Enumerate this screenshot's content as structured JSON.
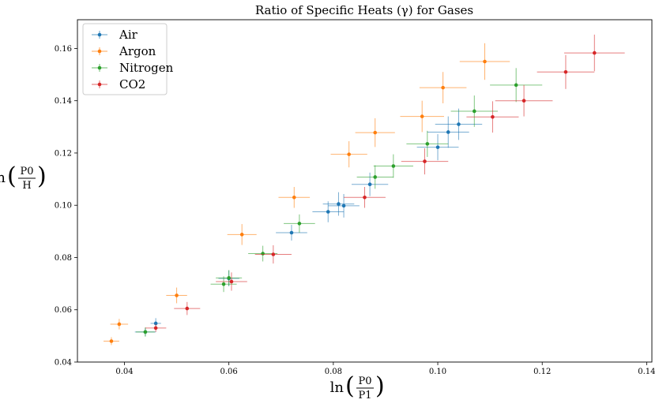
{
  "chart_data": {
    "type": "scatter",
    "title": "Ratio of Specific Heats (γ) for Gases",
    "xlabel": {
      "prefix": "ln",
      "num": "P0",
      "den": "P1"
    },
    "ylabel": {
      "prefix": "ln",
      "num": "P0",
      "den": "H"
    },
    "xlim": [
      0.031,
      0.141
    ],
    "ylim": [
      0.04,
      0.171
    ],
    "xticks": [
      0.04,
      0.06,
      0.08,
      0.1,
      0.12,
      0.14
    ],
    "xtick_labels": [
      "0.04",
      "0.06",
      "0.08",
      "0.10",
      "0.12",
      "0.14"
    ],
    "yticks": [
      0.04,
      0.06,
      0.08,
      0.1,
      0.12,
      0.14,
      0.16
    ],
    "ytick_labels": [
      "0.04",
      "0.06",
      "0.08",
      "0.10",
      "0.12",
      "0.14",
      "0.16"
    ],
    "grid": false,
    "legend_position": "top-left",
    "series": [
      {
        "name": "Air",
        "color": "#1f77b4",
        "x": [
          0.044,
          0.046,
          0.06,
          0.072,
          0.079,
          0.081,
          0.082,
          0.087,
          0.1,
          0.102,
          0.104
        ],
        "y": [
          0.0515,
          0.0548,
          0.072,
          0.0895,
          0.0975,
          0.1005,
          0.0998,
          0.108,
          0.1222,
          0.128,
          0.131
        ],
        "xerr": [
          0.002,
          0.001,
          0.002,
          0.003,
          0.003,
          0.003,
          0.003,
          0.0035,
          0.004,
          0.004,
          0.0045
        ],
        "yerr": [
          0.0015,
          0.002,
          0.003,
          0.003,
          0.004,
          0.0045,
          0.0045,
          0.0045,
          0.005,
          0.006,
          0.006
        ]
      },
      {
        "name": "Argon",
        "color": "#ff7f0e",
        "x": [
          0.0375,
          0.039,
          0.05,
          0.0625,
          0.0725,
          0.083,
          0.088,
          0.097,
          0.101,
          0.109
        ],
        "y": [
          0.048,
          0.0545,
          0.0655,
          0.0888,
          0.103,
          0.1195,
          0.1278,
          0.134,
          0.145,
          0.155
        ],
        "xerr": [
          0.0015,
          0.0017,
          0.002,
          0.0028,
          0.003,
          0.0035,
          0.0038,
          0.0042,
          0.0045,
          0.0048
        ],
        "yerr": [
          0.0015,
          0.002,
          0.003,
          0.004,
          0.004,
          0.005,
          0.0055,
          0.006,
          0.006,
          0.007
        ]
      },
      {
        "name": "Nitrogen",
        "color": "#2ca02c",
        "x": [
          0.044,
          0.059,
          0.06,
          0.0665,
          0.0735,
          0.088,
          0.0915,
          0.098,
          0.107,
          0.115
        ],
        "y": [
          0.0515,
          0.0698,
          0.0722,
          0.0815,
          0.093,
          0.1108,
          0.115,
          0.1235,
          0.136,
          0.146
        ],
        "xerr": [
          0.0018,
          0.0025,
          0.0025,
          0.0028,
          0.003,
          0.0035,
          0.0038,
          0.004,
          0.0045,
          0.005
        ],
        "yerr": [
          0.0018,
          0.003,
          0.003,
          0.003,
          0.0035,
          0.0045,
          0.0045,
          0.005,
          0.006,
          0.0065
        ]
      },
      {
        "name": "CO2",
        "color": "#d62728",
        "x": [
          0.046,
          0.052,
          0.0605,
          0.0685,
          0.086,
          0.0975,
          0.1105,
          0.1165,
          0.1245,
          0.13
        ],
        "y": [
          0.053,
          0.0605,
          0.0708,
          0.0812,
          0.103,
          0.1168,
          0.1338,
          0.14,
          0.151,
          0.1583
        ],
        "xerr": [
          0.002,
          0.0025,
          0.003,
          0.0035,
          0.004,
          0.0045,
          0.005,
          0.0055,
          0.0055,
          0.0058
        ],
        "yerr": [
          0.0015,
          0.0025,
          0.0035,
          0.0035,
          0.004,
          0.005,
          0.006,
          0.006,
          0.0065,
          0.007
        ]
      }
    ]
  }
}
